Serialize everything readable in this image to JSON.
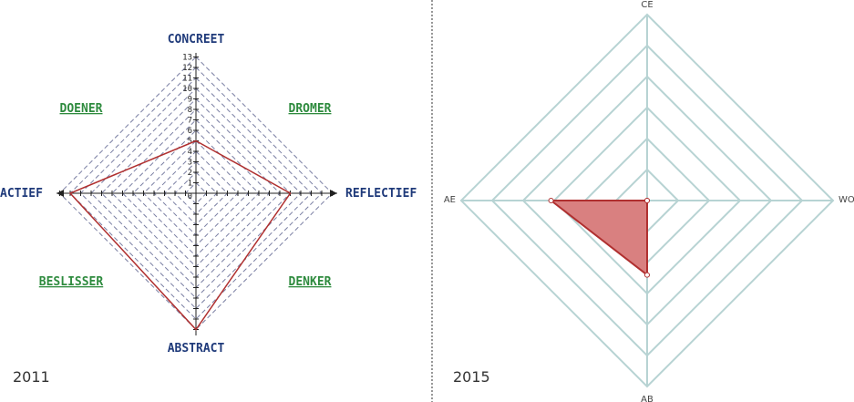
{
  "colors": {
    "axis_label_blue": "#1f3a7a",
    "style_label_green": "#2e8b3e",
    "grid_dash": "#7a7fa3",
    "line_red": "#b03030",
    "fill_red": "#d98080",
    "grid_teal": "#b7d3d3",
    "divider": "#777777"
  },
  "chart_data": [
    {
      "type": "radar",
      "caption": "2011",
      "axes": [
        "CONCREET",
        "REFLECTIEF",
        "ABSTRACT",
        "ACTIEF"
      ],
      "values": [
        5,
        9,
        13,
        12
      ],
      "rmax": 13,
      "ticks": [
        "1",
        "2",
        "3",
        "4",
        "5",
        "6",
        "7",
        "8",
        "9",
        "10",
        "11",
        "12",
        "13"
      ],
      "quadrant_labels": [
        "DOENER",
        "DROMER",
        "BESLISSER",
        "DENKER"
      ],
      "zero_label": "0"
    },
    {
      "type": "radar",
      "caption": "2015",
      "axes": [
        "CE",
        "WO",
        "AB",
        "AE"
      ],
      "values": [
        0,
        0,
        2.4,
        3.1
      ],
      "rmax": 6,
      "rings": 6
    }
  ]
}
